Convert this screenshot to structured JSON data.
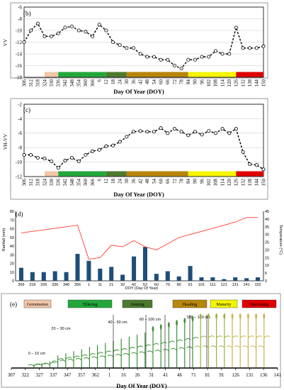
{
  "panel_b": {
    "label": "(b)",
    "ylabel": "VV",
    "xlabel": "Day Of Year (DOY)",
    "yticks": [
      "-6",
      "-8",
      "-10",
      "-12",
      "-14",
      "-16",
      "-18"
    ],
    "xticks": [
      "306",
      "312",
      "318",
      "324",
      "330",
      "336",
      "342",
      "348",
      "354",
      "360",
      "366",
      "6",
      "12",
      "18",
      "24",
      "30",
      "36",
      "42",
      "48",
      "54",
      "60",
      "66",
      "72",
      "78",
      "84",
      "90",
      "96",
      "102",
      "108",
      "114",
      "120",
      "126",
      "132",
      "138",
      "144",
      "150"
    ]
  },
  "panel_c": {
    "label": "(c)",
    "ylabel": "VH-VV",
    "xlabel": "Day Of Year (DOY)",
    "yticks": [
      "-2",
      "-4",
      "-6",
      "-8",
      "-10",
      "-12"
    ],
    "xticks": [
      "306",
      "312",
      "318",
      "324",
      "330",
      "336",
      "342",
      "348",
      "354",
      "360",
      "366",
      "6",
      "12",
      "18",
      "24",
      "30",
      "36",
      "42",
      "48",
      "54",
      "60",
      "66",
      "72",
      "78",
      "84",
      "90",
      "96",
      "102",
      "108",
      "114",
      "120",
      "126",
      "132",
      "138",
      "144",
      "150"
    ]
  },
  "panel_d": {
    "label": "(d)",
    "ylabel_left": "Rainfall (mm)",
    "ylabel_right": "Temperature (°C)",
    "xlabel": "DOY (Day Of Year)",
    "yticks_left": [
      "0",
      "10",
      "20",
      "30",
      "40",
      "50",
      "60",
      "70",
      "80"
    ],
    "yticks_right": [
      "0",
      "5",
      "10",
      "15",
      "20",
      "25",
      "30",
      "35",
      "40",
      "45"
    ],
    "xticks": [
      "306",
      "316",
      "326",
      "336",
      "346",
      "356",
      "1",
      "11",
      "21",
      "32",
      "42",
      "52",
      "60",
      "70",
      "80",
      "91",
      "101",
      "111",
      "121",
      "131",
      "141",
      "152"
    ]
  },
  "panel_e": {
    "label": "(e)",
    "xlabel": "Day Of Year (DOY)",
    "xticks": [
      "307",
      "322",
      "327",
      "337",
      "347",
      "357",
      "362",
      "1",
      "16",
      "26",
      "31",
      "41",
      "46",
      "71",
      "81",
      "91",
      "126",
      "131",
      "136",
      "141"
    ],
    "stages": [
      "Germination",
      "Tillering",
      "Jointing",
      "Heading",
      "Maturity",
      "Harvesting"
    ],
    "heights": [
      "0 – 10 cm",
      "20 – 30 cm",
      "40 – 50 cm",
      "60 – 100 cm",
      "100 – 140 cm"
    ]
  },
  "stage_colors": {
    "germination": "#f2c6a8",
    "tillering": "#22a83a",
    "jointing": "#4c7a2e",
    "heading": "#b8860b",
    "maturity": "#f5f500",
    "harvesting": "#e00000"
  },
  "chart_data": [
    {
      "type": "line",
      "panel": "b",
      "title": "",
      "xlabel": "Day Of Year (DOY)",
      "ylabel": "VV",
      "ylim": [
        -18,
        -6
      ],
      "series": [
        {
          "x": [
            306,
            312,
            318,
            324,
            330,
            336,
            342,
            348,
            354,
            360,
            366,
            6,
            12,
            18,
            24,
            30,
            36,
            42,
            48,
            54,
            60,
            66,
            72,
            78,
            84,
            90,
            96,
            102,
            108,
            114,
            120,
            126,
            132,
            138,
            144,
            150
          ],
          "values": [
            -12,
            -10,
            -8.8,
            -11,
            -11,
            -10.5,
            -9.5,
            -9.3,
            -10,
            -10.2,
            -11,
            -9,
            -10,
            -12,
            -12.5,
            -13,
            -13,
            -14,
            -14.5,
            -14.5,
            -15,
            -15,
            -16,
            -16.5,
            -15,
            -15,
            -14.5,
            -14.5,
            -13.5,
            -14,
            -14,
            -9.5,
            -13,
            -13,
            -13,
            -12.7
          ]
        }
      ]
    },
    {
      "type": "line",
      "panel": "c",
      "title": "",
      "xlabel": "Day Of Year (DOY)",
      "ylabel": "VH-VV",
      "ylim": [
        -12,
        -2
      ],
      "series": [
        {
          "x": [
            306,
            312,
            318,
            324,
            330,
            336,
            342,
            348,
            354,
            360,
            366,
            6,
            12,
            18,
            24,
            30,
            36,
            42,
            48,
            54,
            60,
            66,
            72,
            78,
            84,
            90,
            96,
            102,
            108,
            114,
            120,
            126,
            132,
            138,
            144,
            150
          ],
          "values": [
            -9,
            -9,
            -9.4,
            -9.5,
            -9.9,
            -10.8,
            -9.8,
            -9.4,
            -9.9,
            -9,
            -8.5,
            -8.3,
            -7.8,
            -7.7,
            -7.2,
            -6.5,
            -5.8,
            -5.7,
            -5.8,
            -5.8,
            -5.3,
            -6,
            -5.4,
            -5.8,
            -6.3,
            -5.8,
            -6.2,
            -5.7,
            -6,
            -5.4,
            -6,
            -5.4,
            -8.6,
            -10.3,
            -10.4,
            -11
          ]
        }
      ]
    },
    {
      "type": "bar",
      "panel": "d",
      "title": "",
      "xlabel": "DOY (Day Of Year)",
      "ylabel": "Rainfall (mm)",
      "ylim": [
        0,
        80
      ],
      "categories": [
        "306",
        "316",
        "326",
        "336",
        "346",
        "356",
        "1",
        "11",
        "21",
        "32",
        "42",
        "52",
        "60",
        "70",
        "80",
        "91",
        "101",
        "111",
        "121",
        "131",
        "141",
        "152"
      ],
      "series": [
        {
          "values": [
            15,
            10,
            10,
            11,
            10,
            31,
            23,
            14,
            16,
            7,
            28,
            39,
            8,
            11,
            5,
            17,
            4,
            4,
            2,
            4,
            3,
            4
          ]
        }
      ]
    },
    {
      "type": "line",
      "panel": "d",
      "title": "",
      "xlabel": "DOY (Day Of Year)",
      "ylabel": "Temperature (°C)",
      "ylim": [
        0,
        45
      ],
      "x": [
        306,
        316,
        326,
        336,
        346,
        356,
        1,
        11,
        21,
        32,
        42,
        52,
        60,
        70,
        80,
        91,
        101,
        111,
        121,
        131,
        141,
        152
      ],
      "series": [
        {
          "values": [
            31,
            32,
            33,
            34,
            35,
            36,
            14,
            15,
            23,
            22,
            26,
            22,
            20,
            24,
            28,
            30,
            32,
            34,
            36,
            38,
            41,
            41
          ]
        }
      ]
    }
  ]
}
